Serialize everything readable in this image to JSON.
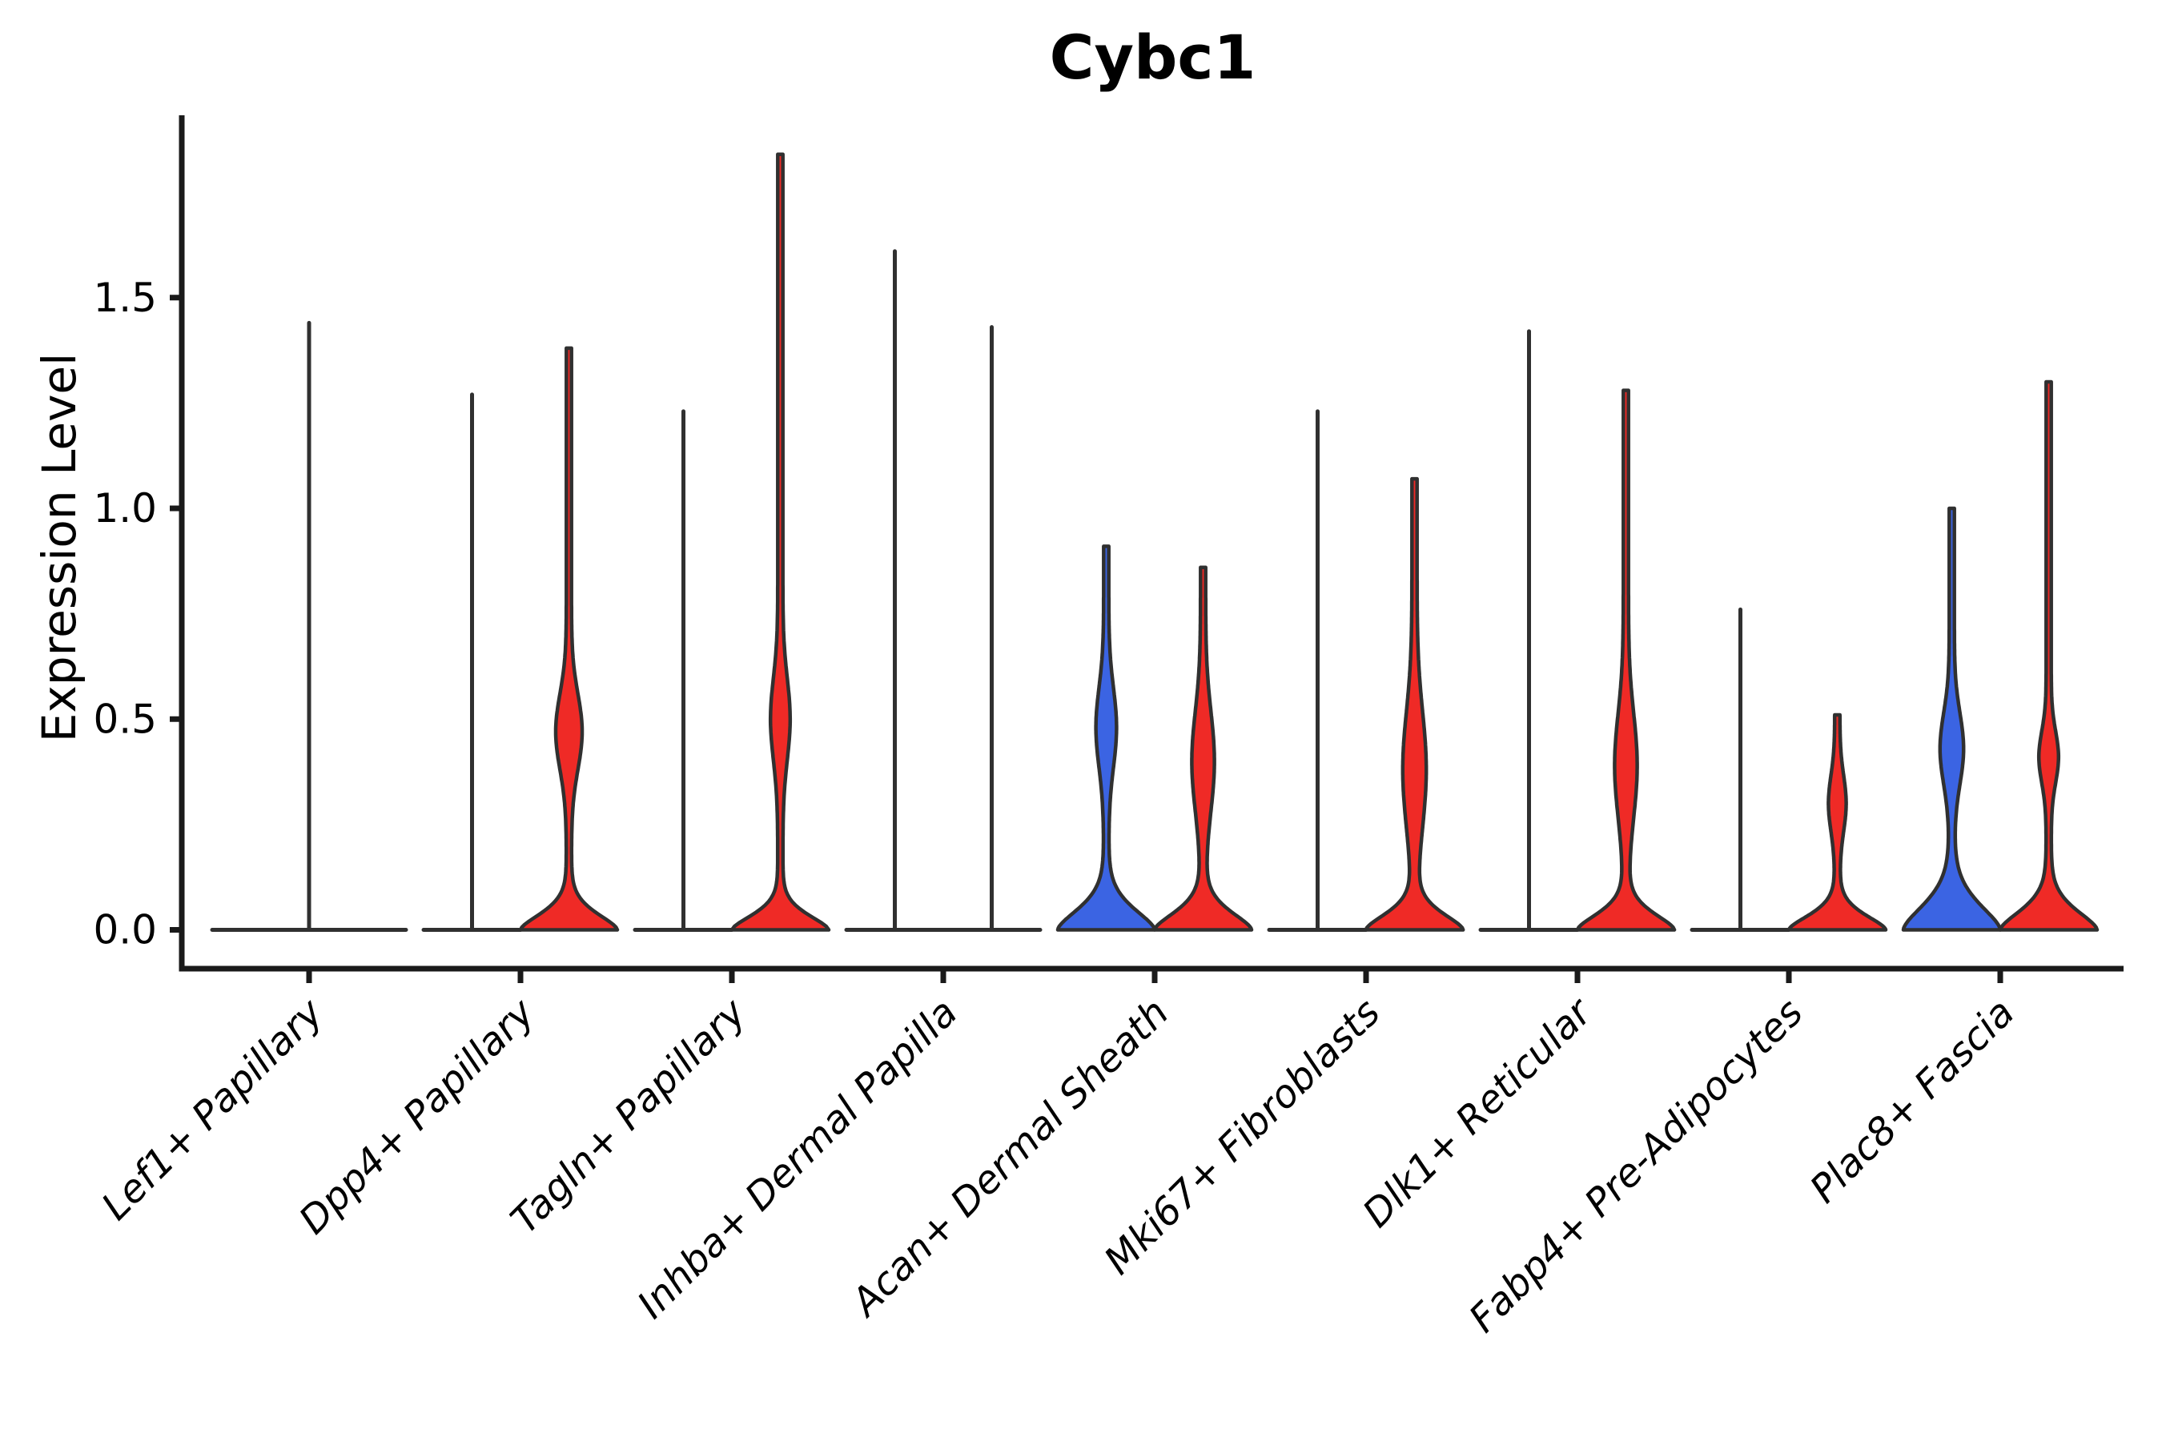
{
  "title": "Cybc1",
  "axes": {
    "ylabel": "Expression Level"
  },
  "colors": {
    "blue": "#3B64E3",
    "red": "#EF2A26",
    "none": "none",
    "outline": "#303030",
    "axis": "#1a1a1a",
    "text": "#000000"
  },
  "chart_data": {
    "type": "violin",
    "title": "Cybc1",
    "xlabel": "",
    "ylabel": "Expression Level",
    "grid": false,
    "legend_position": "none",
    "yticks": [
      0.0,
      0.5,
      1.0,
      1.5
    ],
    "ytick_labels": [
      "0.0",
      "0.5",
      "1.0",
      "1.5"
    ],
    "ylim": [
      -0.09,
      1.93
    ],
    "x_labels_rotation_deg": 45,
    "x_labels_style": "italic",
    "split_colors": {
      "left": "#3B64E3",
      "right": "#EF2A26"
    },
    "categories": [
      "Lef1+ Papillary",
      "Dpp4+ Papillary",
      "Tagln+ Papillary",
      "Inhba+ Dermal Papilla",
      "Acan+ Dermal Sheath",
      "Mki67+ Fibroblasts",
      "Dlk1+ Reticular",
      "Fabp4+ Pre-Adipocytes",
      "Plac8+ Fascia"
    ],
    "groups": [
      {
        "category": "Lef1+ Papillary",
        "violins": [
          {
            "position": "center",
            "fill": "none",
            "shape": "spike",
            "max_expression": 1.44,
            "flat_halfwidth_frac": 2.0
          }
        ]
      },
      {
        "category": "Dpp4+ Papillary",
        "violins": [
          {
            "position": "left",
            "fill": "blue",
            "shape": "spike",
            "max_expression": 1.27
          },
          {
            "position": "right",
            "fill": "red",
            "shape": "violin",
            "max_expression": 1.38,
            "bulge": {
              "peak": 0.47,
              "lo": 0.29,
              "hi": 0.67,
              "width_frac": 0.22
            },
            "base_flare": {
              "height": 0.055,
              "width_frac": 1.0
            }
          }
        ]
      },
      {
        "category": "Tagln+ Papillary",
        "violins": [
          {
            "position": "left",
            "fill": "blue",
            "shape": "spike",
            "max_expression": 1.23
          },
          {
            "position": "right",
            "fill": "red",
            "shape": "violin",
            "max_expression": 1.84,
            "bulge": {
              "peak": 0.5,
              "lo": 0.33,
              "hi": 0.74,
              "width_frac": 0.15
            },
            "base_flare": {
              "height": 0.05,
              "width_frac": 1.0
            }
          }
        ]
      },
      {
        "category": "Inhba+ Dermal Papilla",
        "violins": [
          {
            "position": "left",
            "fill": "blue",
            "shape": "spike",
            "max_expression": 1.61
          },
          {
            "position": "right",
            "fill": "red",
            "shape": "spike",
            "max_expression": 1.43
          }
        ]
      },
      {
        "category": "Acan+ Dermal Sheath",
        "violins": [
          {
            "position": "left",
            "fill": "blue",
            "shape": "violin",
            "max_expression": 0.91,
            "bulge": {
              "peak": 0.48,
              "lo": 0.26,
              "hi": 0.66,
              "width_frac": 0.16
            },
            "base_flare": {
              "height": 0.07,
              "width_frac": 1.0
            }
          },
          {
            "position": "right",
            "fill": "red",
            "shape": "violin",
            "max_expression": 0.86,
            "bulge": {
              "peak": 0.4,
              "lo": 0.18,
              "hi": 0.68,
              "width_frac": 0.18
            },
            "base_flare": {
              "height": 0.06,
              "width_frac": 1.0
            }
          }
        ]
      },
      {
        "category": "Mki67+ Fibroblasts",
        "violins": [
          {
            "position": "left",
            "fill": "blue",
            "shape": "spike",
            "max_expression": 1.23
          },
          {
            "position": "right",
            "fill": "red",
            "shape": "violin",
            "max_expression": 1.07,
            "bulge": {
              "peak": 0.38,
              "lo": 0.17,
              "hi": 0.75,
              "width_frac": 0.19
            },
            "base_flare": {
              "height": 0.055,
              "width_frac": 1.0
            }
          }
        ]
      },
      {
        "category": "Dlk1+ Reticular",
        "violins": [
          {
            "position": "left",
            "fill": "blue",
            "shape": "spike",
            "max_expression": 1.42
          },
          {
            "position": "right",
            "fill": "red",
            "shape": "violin",
            "max_expression": 1.28,
            "bulge": {
              "peak": 0.39,
              "lo": 0.21,
              "hi": 0.73,
              "width_frac": 0.18
            },
            "base_flare": {
              "height": 0.055,
              "width_frac": 1.0
            }
          }
        ]
      },
      {
        "category": "Fabp4+ Pre-Adipocytes",
        "violins": [
          {
            "position": "left",
            "fill": "blue",
            "shape": "spike",
            "max_expression": 0.76
          },
          {
            "position": "right",
            "fill": "red",
            "shape": "violin",
            "max_expression": 0.51,
            "bulge": {
              "peak": 0.3,
              "lo": 0.16,
              "hi": 0.44,
              "width_frac": 0.13
            },
            "base_flare": {
              "height": 0.05,
              "width_frac": 1.0
            }
          }
        ]
      },
      {
        "category": "Plac8+ Fascia",
        "violins": [
          {
            "position": "left",
            "fill": "blue",
            "shape": "violin",
            "max_expression": 1.0,
            "bulge": {
              "peak": 0.43,
              "lo": 0.22,
              "hi": 0.58,
              "width_frac": 0.19
            },
            "base_flare": {
              "height": 0.085,
              "width_frac": 1.0
            }
          },
          {
            "position": "right",
            "fill": "red",
            "shape": "violin",
            "max_expression": 1.3,
            "bulge": {
              "peak": 0.41,
              "lo": 0.26,
              "hi": 0.52,
              "width_frac": 0.15
            },
            "base_flare": {
              "height": 0.065,
              "width_frac": 1.0
            }
          }
        ]
      }
    ]
  }
}
